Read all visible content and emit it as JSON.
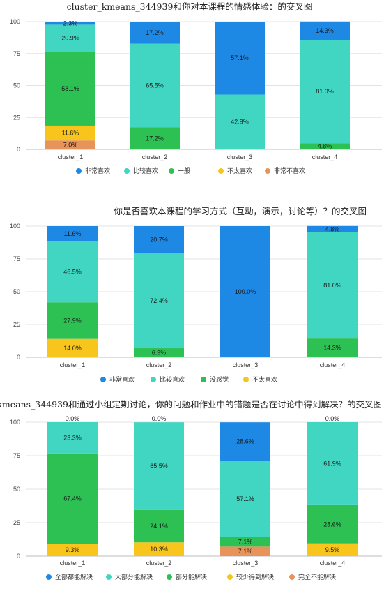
{
  "chart_data": [
    {
      "type": "bar",
      "stacked": true,
      "title": "cluster_kmeans_344939和你对本课程的情感体验：的交叉图",
      "categories": [
        "cluster_1",
        "cluster_2",
        "cluster_3",
        "cluster_4"
      ],
      "ylim": [
        0,
        100
      ],
      "yticks": [
        "0",
        "25",
        "50",
        "75",
        "100"
      ],
      "grid": true,
      "legend_position": "bottom",
      "series": [
        {
          "name": "非常喜欢",
          "color": "#1e88e5",
          "values": [
            2.3,
            17.2,
            57.1,
            14.3
          ],
          "labels": [
            "2.3%",
            "17.2%",
            "57.1%",
            "14.3%"
          ]
        },
        {
          "name": "比较喜欢",
          "color": "#40d6c2",
          "values": [
            20.9,
            65.5,
            42.9,
            81.0
          ],
          "labels": [
            "20.9%",
            "65.5%",
            "42.9%",
            "81.0%"
          ]
        },
        {
          "name": "一般",
          "color": "#2dc053",
          "values": [
            58.1,
            17.2,
            0.0,
            4.8
          ],
          "labels": [
            "58.1%",
            "17.2%",
            "0.0%",
            "4.8%"
          ]
        },
        {
          "name": "不太喜欢",
          "color": "#f8c51c",
          "values": [
            11.6,
            0.0,
            0.0,
            0.0
          ],
          "labels": [
            "11.6%",
            "0.0%",
            "",
            "0.0%"
          ]
        },
        {
          "name": "非常不喜欢",
          "color": "#e8935a",
          "values": [
            7.0,
            0.0,
            0.0,
            0.0
          ],
          "labels": [
            "7.0%",
            "",
            "",
            ""
          ]
        }
      ]
    },
    {
      "type": "bar",
      "stacked": true,
      "title": "你是否喜欢本课程的学习方式（互动，演示，讨论等）？的交叉图",
      "categories": [
        "cluster_1",
        "cluster_2",
        "cluster_3",
        "cluster_4"
      ],
      "ylim": [
        0,
        100
      ],
      "yticks": [
        "0",
        "25",
        "50",
        "75",
        "100"
      ],
      "grid": true,
      "legend_position": "bottom",
      "series": [
        {
          "name": "非常喜欢",
          "color": "#1e88e5",
          "values": [
            11.6,
            20.7,
            100.0,
            4.8
          ],
          "labels": [
            "11.6%",
            "20.7%",
            "100.0%",
            "4.8%"
          ]
        },
        {
          "name": "比较喜欢",
          "color": "#40d6c2",
          "values": [
            46.5,
            72.4,
            0.0,
            81.0
          ],
          "labels": [
            "46.5%",
            "72.4%",
            "0.0%",
            "81.0%"
          ]
        },
        {
          "name": "没感觉",
          "color": "#2dc053",
          "values": [
            27.9,
            6.9,
            0.0,
            14.3
          ],
          "labels": [
            "27.9%",
            "6.9%",
            "",
            "14.3%"
          ]
        },
        {
          "name": "不太喜欢",
          "color": "#f8c51c",
          "values": [
            14.0,
            0.0,
            0.0,
            0.0
          ],
          "labels": [
            "14.0%",
            "0.0%",
            "",
            "0.0%"
          ]
        }
      ]
    },
    {
      "type": "bar",
      "stacked": true,
      "title": "cluster_kmeans_344939和通过小组定期讨论，你的问题和作业中的错题是否在讨论中得到解决？的交叉图",
      "categories": [
        "cluster_1",
        "cluster_2",
        "cluster_3",
        "cluster_4"
      ],
      "ylim": [
        0,
        100
      ],
      "yticks": [
        "0",
        "25",
        "50",
        "75",
        "100"
      ],
      "grid": true,
      "legend_position": "bottom",
      "series": [
        {
          "name": "全部都能解决",
          "color": "#1e88e5",
          "values": [
            0.0,
            0.0,
            28.6,
            0.0
          ],
          "labels": [
            "0.0%",
            "0.0%",
            "28.6%",
            "0.0%"
          ]
        },
        {
          "name": "大部分能解决",
          "color": "#40d6c2",
          "values": [
            23.3,
            65.5,
            57.1,
            61.9
          ],
          "labels": [
            "23.3%",
            "65.5%",
            "57.1%",
            "61.9%"
          ]
        },
        {
          "name": "部分能解决",
          "color": "#2dc053",
          "values": [
            67.4,
            24.1,
            7.1,
            28.6
          ],
          "labels": [
            "67.4%",
            "24.1%",
            "7.1%",
            "28.6%"
          ]
        },
        {
          "name": "较少得到解决",
          "color": "#f8c51c",
          "values": [
            9.3,
            10.3,
            0.0,
            9.5
          ],
          "labels": [
            "9.3%",
            "10.3%",
            "0.0%",
            "9.5%"
          ]
        },
        {
          "name": "完全不能解决",
          "color": "#e8935a",
          "values": [
            0.0,
            0.0,
            7.1,
            0.0
          ],
          "labels": [
            "0.0%",
            "0.0%",
            "7.1%",
            "0.0%"
          ]
        }
      ]
    }
  ]
}
